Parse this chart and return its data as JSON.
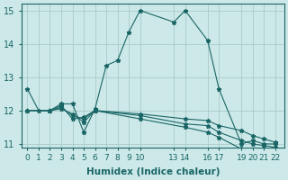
{
  "xlabel": "Humidex (Indice chaleur)",
  "bg_color": "#cce8e8",
  "grid_color": "#aacccc",
  "line_color": "#1a6666",
  "ylim": [
    10.9,
    15.2
  ],
  "yticks": [
    11,
    12,
    13,
    14,
    15
  ],
  "xtick_positions": [
    0,
    1,
    2,
    3,
    4,
    5,
    6,
    7,
    8,
    9,
    10,
    13,
    14,
    16,
    17,
    19,
    20,
    21,
    22
  ],
  "xtick_labels": [
    "0",
    "1",
    "2",
    "3",
    "4",
    "5",
    "6",
    "7",
    "8",
    "9",
    "10",
    "13",
    "14",
    "16",
    "17",
    "19",
    "20",
    "21",
    "22"
  ],
  "lines": [
    {
      "x": [
        0,
        1,
        2,
        3,
        4,
        5,
        6,
        7,
        8,
        9,
        10,
        13,
        14,
        16,
        17,
        19,
        20,
        21,
        22
      ],
      "y": [
        12.65,
        12.0,
        12.0,
        12.2,
        12.2,
        11.35,
        12.05,
        13.35,
        13.5,
        14.35,
        15.0,
        14.65,
        15.0,
        14.1,
        12.65,
        11.0,
        11.1,
        11.0,
        11.0
      ]
    },
    {
      "x": [
        0,
        2,
        3,
        4,
        5,
        6,
        10,
        14,
        16,
        17,
        19,
        20,
        21,
        22
      ],
      "y": [
        12.0,
        12.0,
        12.15,
        11.75,
        11.8,
        12.0,
        11.9,
        11.75,
        11.7,
        11.55,
        11.4,
        11.25,
        11.15,
        11.05
      ]
    },
    {
      "x": [
        0,
        2,
        3,
        4,
        5,
        6,
        10,
        14,
        16,
        17,
        19,
        20,
        21,
        22
      ],
      "y": [
        12.0,
        12.0,
        12.1,
        11.85,
        11.75,
        12.0,
        11.85,
        11.6,
        11.55,
        11.35,
        11.1,
        11.0,
        10.95,
        10.9
      ]
    },
    {
      "x": [
        0,
        2,
        3,
        4,
        5,
        6,
        10,
        14,
        16,
        17,
        19,
        20,
        21,
        22
      ],
      "y": [
        12.0,
        12.0,
        12.05,
        11.9,
        11.65,
        12.0,
        11.75,
        11.5,
        11.35,
        11.2,
        10.85,
        10.75,
        10.65,
        10.6
      ]
    }
  ]
}
